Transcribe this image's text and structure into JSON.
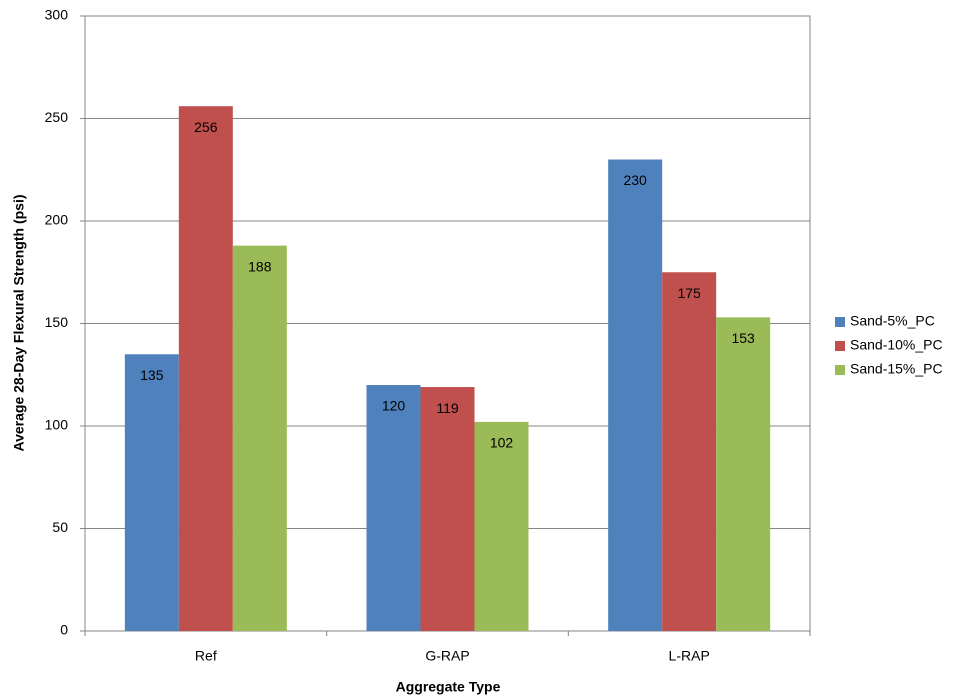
{
  "chart_data": {
    "type": "bar",
    "x_label": "Aggregate Type",
    "y_label": "Average 28-Day Flexural Strength (psi)",
    "categories": [
      "Ref",
      "G-RAP",
      "L-RAP"
    ],
    "series": [
      {
        "name": "Sand-5%_PC",
        "color": "#4f81bd",
        "values": [
          135,
          120,
          230
        ]
      },
      {
        "name": "Sand-10%_PC",
        "color": "#c0504d",
        "values": [
          256,
          119,
          175
        ]
      },
      {
        "name": "Sand-15%_PC",
        "color": "#9bbb59",
        "values": [
          188,
          102,
          153
        ]
      }
    ],
    "ylim": [
      0,
      300
    ],
    "yticks": [
      0,
      50,
      100,
      150,
      200,
      250,
      300
    ],
    "grid": true,
    "legend": "right"
  }
}
